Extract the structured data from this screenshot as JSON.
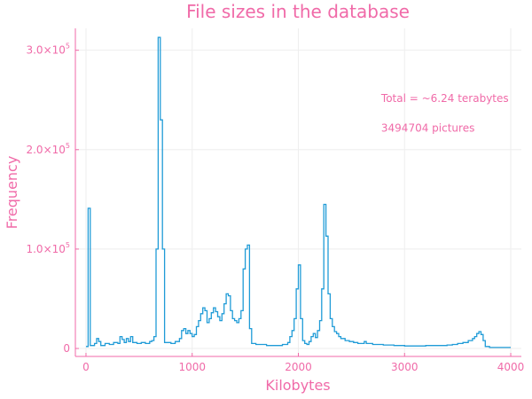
{
  "colors": {
    "text": "#f06aa8",
    "axis": "#f06aa8",
    "line": "#1f9bd7",
    "grid": "#eeeeee"
  },
  "chart_data": {
    "type": "line",
    "step": true,
    "title": "File sizes in the database",
    "xlabel": "Kilobytes",
    "ylabel": "Frequency",
    "xlim": [
      -100,
      4100
    ],
    "ylim": [
      -8000,
      322000
    ],
    "grid": true,
    "legend": "none",
    "x_ticks": [
      {
        "value": 0,
        "label": "0"
      },
      {
        "value": 1000,
        "label": "1000"
      },
      {
        "value": 2000,
        "label": "2000"
      },
      {
        "value": 3000,
        "label": "3000"
      },
      {
        "value": 4000,
        "label": "4000"
      }
    ],
    "y_ticks": [
      {
        "value": 0,
        "mant": "0",
        "exp": ""
      },
      {
        "value": 100000,
        "mant": "1.0×10",
        "exp": "5"
      },
      {
        "value": 200000,
        "mant": "2.0×10",
        "exp": "5"
      },
      {
        "value": 300000,
        "mant": "3.0×10",
        "exp": "5"
      }
    ],
    "annotations": [
      {
        "text": "Total = ~6.24 terabytes",
        "x": 2780,
        "y": 248000
      },
      {
        "text": "3494704 pictures",
        "x": 2780,
        "y": 218000
      }
    ],
    "series": [
      {
        "values": [
          [
            0,
            2000
          ],
          [
            20,
            141000
          ],
          [
            40,
            3000
          ],
          [
            80,
            5000
          ],
          [
            100,
            10000
          ],
          [
            120,
            7000
          ],
          [
            140,
            3000
          ],
          [
            180,
            5000
          ],
          [
            220,
            4000
          ],
          [
            260,
            6000
          ],
          [
            300,
            5000
          ],
          [
            320,
            12000
          ],
          [
            340,
            9000
          ],
          [
            360,
            6000
          ],
          [
            380,
            10000
          ],
          [
            400,
            7000
          ],
          [
            420,
            12000
          ],
          [
            440,
            6000
          ],
          [
            480,
            5000
          ],
          [
            520,
            6000
          ],
          [
            560,
            5000
          ],
          [
            600,
            7000
          ],
          [
            620,
            8000
          ],
          [
            640,
            12000
          ],
          [
            660,
            100000
          ],
          [
            680,
            313000
          ],
          [
            700,
            230000
          ],
          [
            720,
            100000
          ],
          [
            740,
            6000
          ],
          [
            800,
            5000
          ],
          [
            840,
            7000
          ],
          [
            880,
            10000
          ],
          [
            900,
            18000
          ],
          [
            920,
            20000
          ],
          [
            940,
            15000
          ],
          [
            960,
            18000
          ],
          [
            980,
            15000
          ],
          [
            1000,
            12000
          ],
          [
            1020,
            14000
          ],
          [
            1040,
            22000
          ],
          [
            1060,
            28000
          ],
          [
            1080,
            35000
          ],
          [
            1100,
            41000
          ],
          [
            1120,
            38000
          ],
          [
            1140,
            26000
          ],
          [
            1160,
            30000
          ],
          [
            1180,
            36000
          ],
          [
            1200,
            41000
          ],
          [
            1220,
            37000
          ],
          [
            1240,
            32000
          ],
          [
            1260,
            28000
          ],
          [
            1280,
            35000
          ],
          [
            1300,
            45000
          ],
          [
            1320,
            55000
          ],
          [
            1340,
            53000
          ],
          [
            1360,
            38000
          ],
          [
            1380,
            30000
          ],
          [
            1400,
            28000
          ],
          [
            1420,
            26000
          ],
          [
            1440,
            30000
          ],
          [
            1460,
            38000
          ],
          [
            1480,
            80000
          ],
          [
            1500,
            100000
          ],
          [
            1520,
            104000
          ],
          [
            1540,
            20000
          ],
          [
            1560,
            5000
          ],
          [
            1600,
            4000
          ],
          [
            1700,
            3000
          ],
          [
            1800,
            3000
          ],
          [
            1850,
            4000
          ],
          [
            1900,
            6000
          ],
          [
            1920,
            12000
          ],
          [
            1940,
            18000
          ],
          [
            1960,
            30000
          ],
          [
            1980,
            60000
          ],
          [
            2000,
            84000
          ],
          [
            2020,
            30000
          ],
          [
            2040,
            8000
          ],
          [
            2060,
            5000
          ],
          [
            2080,
            4000
          ],
          [
            2100,
            7000
          ],
          [
            2120,
            12000
          ],
          [
            2140,
            15000
          ],
          [
            2160,
            11000
          ],
          [
            2180,
            18000
          ],
          [
            2200,
            28000
          ],
          [
            2220,
            60000
          ],
          [
            2240,
            145000
          ],
          [
            2260,
            113000
          ],
          [
            2280,
            55000
          ],
          [
            2300,
            30000
          ],
          [
            2320,
            22000
          ],
          [
            2340,
            17000
          ],
          [
            2360,
            15000
          ],
          [
            2380,
            12000
          ],
          [
            2400,
            10000
          ],
          [
            2440,
            8000
          ],
          [
            2480,
            7000
          ],
          [
            2520,
            6000
          ],
          [
            2560,
            5000
          ],
          [
            2600,
            5000
          ],
          [
            2620,
            7000
          ],
          [
            2640,
            5000
          ],
          [
            2700,
            4000
          ],
          [
            2800,
            3500
          ],
          [
            2900,
            3000
          ],
          [
            3000,
            2500
          ],
          [
            3100,
            2500
          ],
          [
            3200,
            3000
          ],
          [
            3300,
            3000
          ],
          [
            3400,
            3500
          ],
          [
            3450,
            4000
          ],
          [
            3500,
            5000
          ],
          [
            3550,
            6000
          ],
          [
            3600,
            8000
          ],
          [
            3640,
            10000
          ],
          [
            3660,
            12000
          ],
          [
            3680,
            15000
          ],
          [
            3700,
            17000
          ],
          [
            3720,
            14000
          ],
          [
            3740,
            8000
          ],
          [
            3760,
            2000
          ],
          [
            3800,
            1000
          ],
          [
            3900,
            1000
          ],
          [
            4000,
            1000
          ]
        ]
      }
    ]
  }
}
